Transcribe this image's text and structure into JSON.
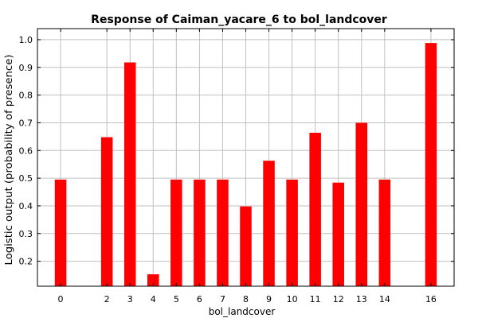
{
  "chart_data": {
    "type": "bar",
    "title": "Response of Caiman_yacare_6 to bol_landcover",
    "xlabel": "bol_landcover",
    "ylabel": "Logistic output (probability of presence)",
    "xlim": [
      -1,
      17
    ],
    "ylim": [
      0.11,
      1.04
    ],
    "xticks": [
      0,
      2,
      3,
      4,
      5,
      6,
      7,
      8,
      9,
      10,
      11,
      12,
      13,
      14,
      16
    ],
    "yticks": [
      0.2,
      0.3,
      0.4,
      0.5,
      0.6,
      0.7,
      0.8,
      0.9,
      1.0
    ],
    "ytick_labels": [
      "0.2",
      "0.3",
      "0.4",
      "0.5",
      "0.6",
      "0.7",
      "0.8",
      "0.9",
      "1.0"
    ],
    "grid": true,
    "bar_color": "#ff0000",
    "categories": [
      0,
      2,
      3,
      4,
      5,
      6,
      7,
      8,
      9,
      10,
      11,
      12,
      13,
      14,
      16
    ],
    "values": [
      0.495,
      0.648,
      0.918,
      0.153,
      0.495,
      0.495,
      0.495,
      0.398,
      0.563,
      0.495,
      0.664,
      0.484,
      0.7,
      0.495,
      0.988
    ]
  }
}
